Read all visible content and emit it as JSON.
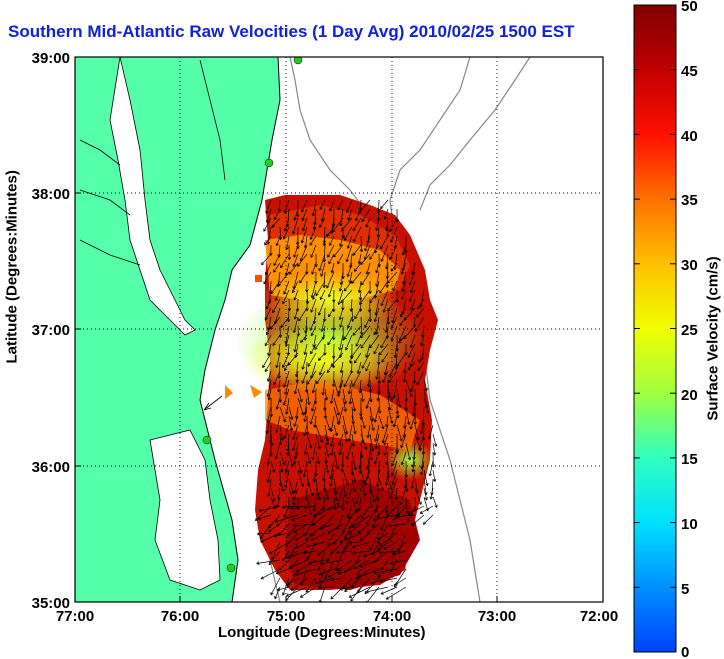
{
  "title": "Southern Mid-Atlantic Raw Velocities (1 Day Avg) 2010/02/25 1500 EST",
  "x_axis": {
    "label": "Longitude (Degrees:Minutes)",
    "ticks": [
      "77:00",
      "76:00",
      "75:00",
      "74:00",
      "73:00",
      "72:00"
    ]
  },
  "y_axis": {
    "label": "Latitude (Degrees:Minutes)",
    "ticks": [
      "39:00",
      "38:00",
      "37:00",
      "36:00",
      "35:00"
    ]
  },
  "colorbar": {
    "label": "Surface Velocity (cm/s)",
    "ticks": [
      "50",
      "45",
      "40",
      "35",
      "30",
      "25",
      "20",
      "15",
      "10",
      "5",
      "0"
    ],
    "range": [
      0,
      50
    ]
  },
  "colors": {
    "land": "#55ffaa",
    "title": "#1020e0",
    "bathymetry": "#888888",
    "stations": "#22cc22"
  },
  "legend_grid": "dotted"
}
